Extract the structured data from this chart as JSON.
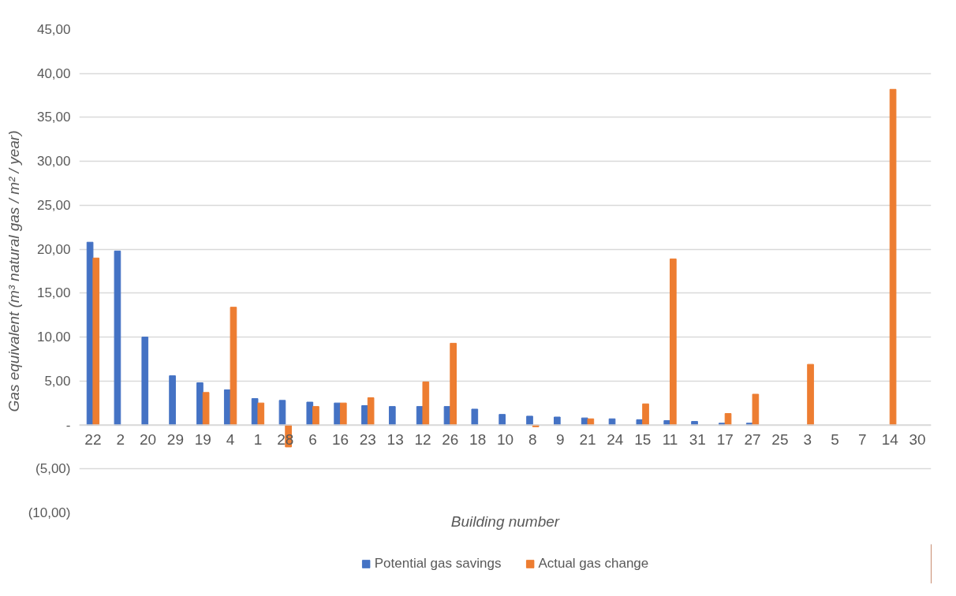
{
  "chart_data": {
    "type": "bar",
    "xlabel": "Building number",
    "ylabel": "Gas equivalent (m³ natural gas / m² / year)",
    "categories": [
      "22",
      "2",
      "20",
      "29",
      "19",
      "4",
      "1",
      "28",
      "6",
      "16",
      "23",
      "13",
      "12",
      "26",
      "18",
      "10",
      "8",
      "9",
      "21",
      "24",
      "15",
      "11",
      "31",
      "17",
      "27",
      "25",
      "3",
      "5",
      "7",
      "14",
      "30"
    ],
    "series": [
      {
        "name": "Potential gas savings",
        "color": "#4472c4",
        "values": [
          20.8,
          19.8,
          10.0,
          5.6,
          4.8,
          4.0,
          3.0,
          2.8,
          2.6,
          2.5,
          2.2,
          2.1,
          2.1,
          2.1,
          1.8,
          1.2,
          1.0,
          0.9,
          0.8,
          0.7,
          0.6,
          0.5,
          0.4,
          0.2,
          0.2,
          null,
          null,
          null,
          null,
          null,
          null
        ]
      },
      {
        "name": "Actual gas change",
        "color": "#ed7d31",
        "values": [
          19.0,
          null,
          null,
          null,
          3.7,
          13.4,
          2.5,
          -2.5,
          2.1,
          2.5,
          3.1,
          null,
          4.9,
          9.3,
          null,
          null,
          -0.2,
          null,
          0.7,
          null,
          2.4,
          18.9,
          null,
          1.3,
          3.5,
          null,
          6.9,
          null,
          null,
          38.2,
          null
        ]
      }
    ],
    "ylim": [
      -10,
      45
    ],
    "yticks": [
      {
        "value": -10,
        "label": "(10,00)"
      },
      {
        "value": -5,
        "label": "(5,00)"
      },
      {
        "value": 0,
        "label": "-"
      },
      {
        "value": 5,
        "label": "5,00"
      },
      {
        "value": 10,
        "label": "10,00"
      },
      {
        "value": 15,
        "label": "15,00"
      },
      {
        "value": 20,
        "label": "20,00"
      },
      {
        "value": 25,
        "label": "25,00"
      },
      {
        "value": 30,
        "label": "30,00"
      },
      {
        "value": 35,
        "label": "35,00"
      },
      {
        "value": 40,
        "label": "40,00"
      },
      {
        "value": 45,
        "label": "45,00"
      }
    ],
    "grid": "y",
    "legend": "bottom"
  }
}
